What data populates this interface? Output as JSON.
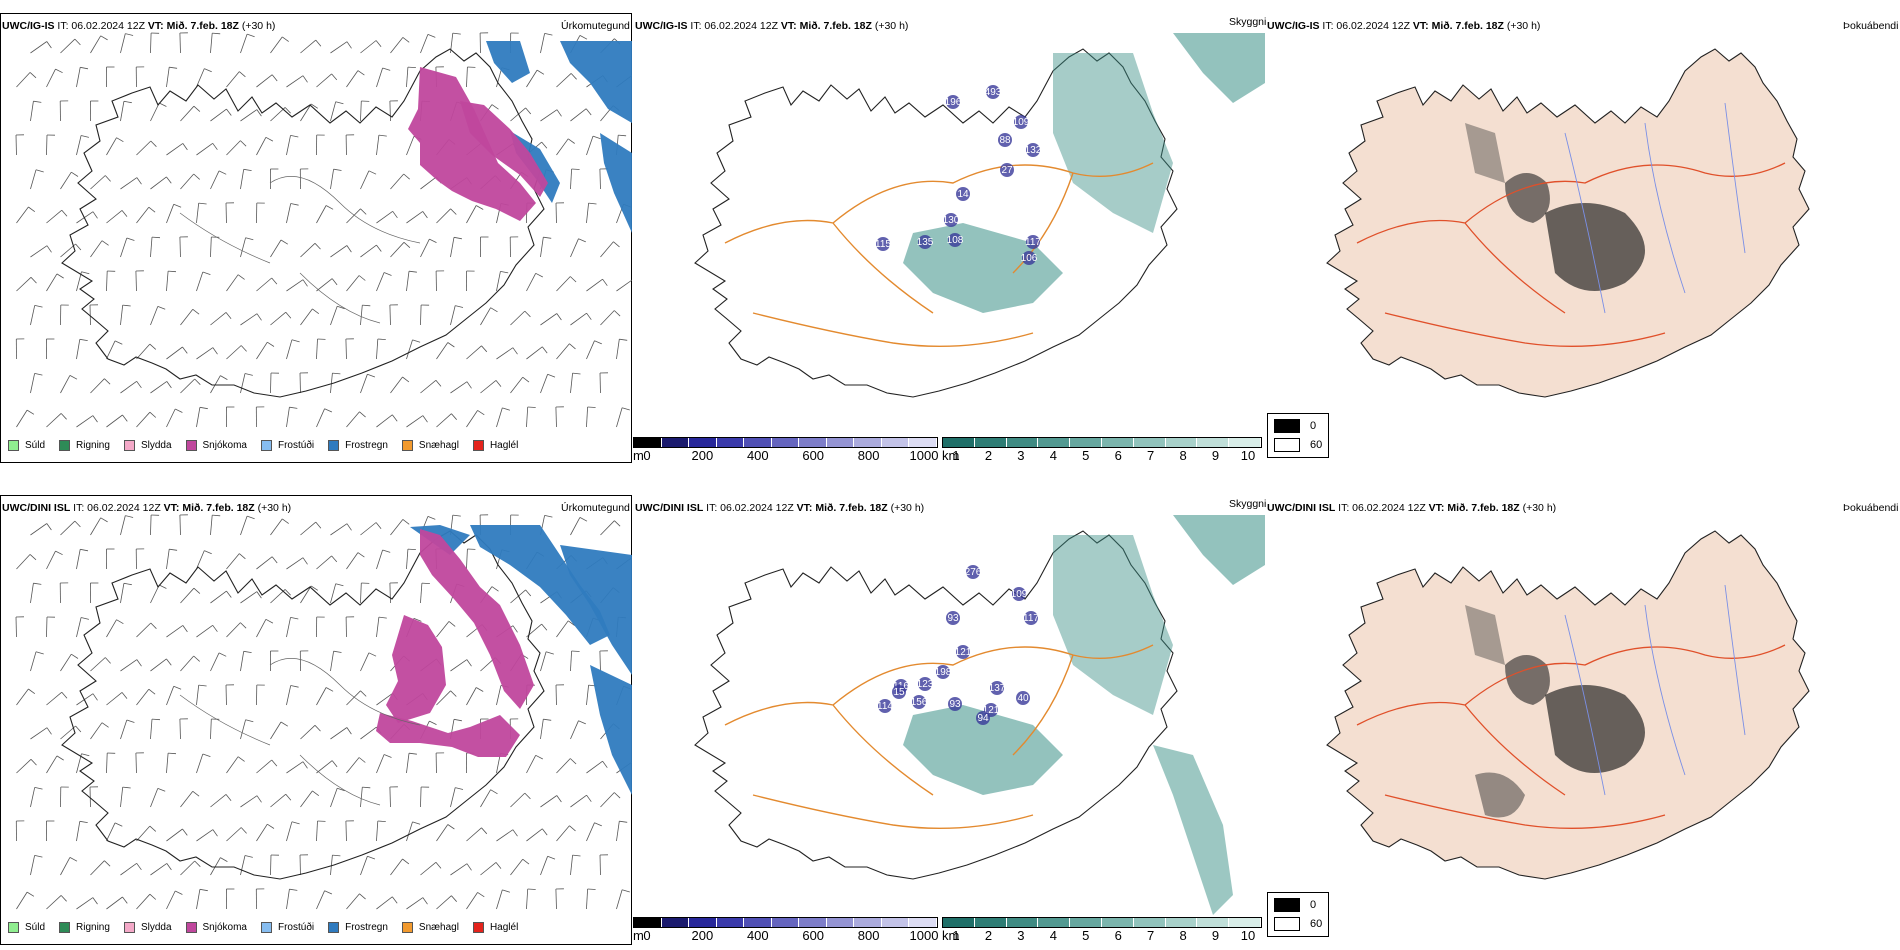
{
  "rows": [
    {
      "model": "UWC/IG-IS",
      "header_rest": " IT: 06.02.2024 12Z ",
      "vt_label": "VT: Mið. 7.feb. 18Z",
      "lead": " (+30 h)"
    },
    {
      "model": "UWC/DINI ISL",
      "header_rest": " IT: 06.02.2024 12Z ",
      "vt_label": "VT: Mið. 7.feb. 18Z",
      "lead": " (+30 h)"
    }
  ],
  "panel_titles": {
    "precip_type": "Úrkomutegund",
    "cloud": "Skyggni",
    "fog": "Þokuábendi"
  },
  "precip_legend": [
    {
      "label": "Súld",
      "color": "#90ee90"
    },
    {
      "label": "Rigning",
      "color": "#2e8b57"
    },
    {
      "label": "Slydda",
      "color": "#f4a9c8"
    },
    {
      "label": "Snjókoma",
      "color": "#c0479d"
    },
    {
      "label": "Frostúði",
      "color": "#87bdf0"
    },
    {
      "label": "Frostregn",
      "color": "#2f7bbf"
    },
    {
      "label": "Snæhagl",
      "color": "#f29a2e"
    },
    {
      "label": "Haglél",
      "color": "#e4231c"
    }
  ],
  "visibility_m_bar": {
    "unit": "m",
    "ticks": [
      "0",
      "200",
      "400",
      "600",
      "800",
      "1000"
    ]
  },
  "visibility_km_bar": {
    "unit": "km",
    "ticks": [
      "1",
      "2",
      "3",
      "4",
      "5",
      "6",
      "7",
      "8",
      "9",
      "10"
    ]
  },
  "fog_legend": [
    {
      "label": "0",
      "color": "#000000"
    },
    {
      "label": "60",
      "color": "#ffffff"
    }
  ],
  "cloud_labels_top": [
    "493",
    "196",
    "109",
    "88",
    "132",
    "130",
    "135",
    "108",
    "115",
    "117",
    "106",
    "14",
    "27"
  ],
  "cloud_labels_bottom": [
    "276",
    "109",
    "117",
    "93",
    "121",
    "198",
    "123",
    "116",
    "156",
    "93",
    "137",
    "121",
    "40",
    "114",
    "15",
    "94"
  ],
  "colors": {
    "snow": "#c0479d",
    "frozen_rain": "#2f7bbf",
    "teal": "#3a8f86",
    "low_vis": "#3a3a9a",
    "road": "#e38a2f",
    "land_fog": "#f4dfd1",
    "road_fog": "#e0502a",
    "river": "#7a8fe6"
  }
}
